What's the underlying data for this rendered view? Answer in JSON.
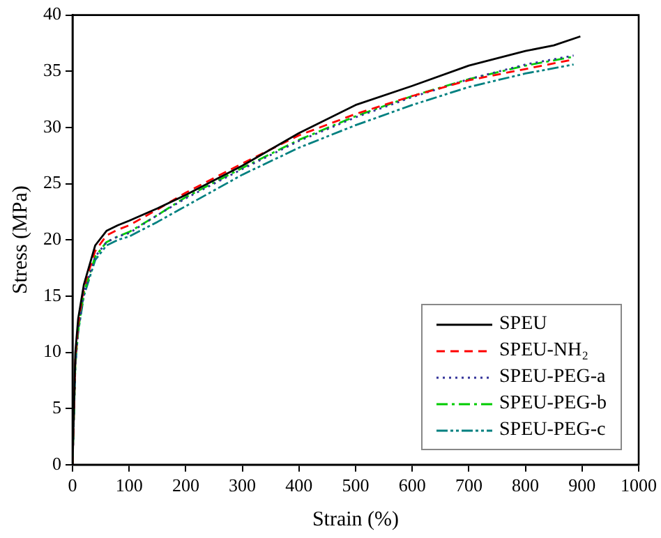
{
  "chart_data": {
    "type": "line",
    "xlabel": "Strain (%)",
    "ylabel": "Stress (MPa)",
    "xlim": [
      0,
      1000
    ],
    "xticks": [
      0,
      100,
      200,
      300,
      400,
      500,
      600,
      700,
      800,
      900,
      1000
    ],
    "ylim": [
      0,
      40
    ],
    "yticks": [
      0,
      5,
      10,
      15,
      20,
      25,
      30,
      35,
      40
    ],
    "grid": false,
    "legend": "bottom right",
    "marker": "none",
    "series": [
      {
        "name": "SPEU",
        "color": "#000000",
        "line_style": "solid",
        "x": [
          0,
          5,
          10,
          20,
          40,
          60,
          80,
          100,
          150,
          200,
          300,
          400,
          500,
          600,
          700,
          800,
          850,
          897
        ],
        "values": [
          0,
          10,
          13,
          16,
          19.5,
          20.8,
          21.3,
          21.7,
          22.8,
          24,
          26.6,
          29.5,
          32,
          33.7,
          35.5,
          36.8,
          37.3,
          38.1
        ]
      },
      {
        "name": "SPEU-NH₂",
        "color": "#ff0000",
        "line_style": "dashed",
        "x": [
          0,
          5,
          10,
          20,
          40,
          60,
          80,
          100,
          150,
          200,
          300,
          400,
          500,
          600,
          700,
          800,
          880
        ],
        "values": [
          0,
          9.5,
          12.5,
          15.8,
          19,
          20.4,
          20.9,
          21.3,
          22.7,
          24.2,
          26.8,
          29.3,
          31.2,
          32.8,
          34.2,
          35.2,
          36
        ]
      },
      {
        "name": "SPEU-PEG-a",
        "color": "#333399",
        "line_style": "dotted",
        "x": [
          0,
          5,
          10,
          20,
          40,
          60,
          80,
          100,
          150,
          200,
          300,
          400,
          500,
          600,
          700,
          800,
          885
        ],
        "values": [
          0,
          9,
          12,
          15.3,
          18.5,
          19.8,
          20.3,
          20.6,
          22.2,
          23.7,
          26.3,
          28.8,
          30.9,
          32.7,
          34.3,
          35.6,
          36.4
        ]
      },
      {
        "name": "SPEU-PEG-b",
        "color": "#00cc00",
        "line_style": "dashdot",
        "x": [
          0,
          5,
          10,
          20,
          40,
          60,
          80,
          100,
          150,
          200,
          300,
          400,
          500,
          600,
          700,
          800,
          885
        ],
        "values": [
          0,
          9,
          12,
          15.3,
          18.5,
          19.8,
          20.3,
          20.7,
          22.2,
          23.8,
          26.4,
          28.9,
          31,
          32.8,
          34.3,
          35.5,
          36.3
        ]
      },
      {
        "name": "SPEU-PEG-c",
        "color": "#008080",
        "line_style": "dashdotdot",
        "x": [
          0,
          5,
          10,
          20,
          40,
          60,
          80,
          100,
          150,
          200,
          300,
          400,
          500,
          600,
          700,
          800,
          885
        ],
        "values": [
          0,
          8.8,
          11.8,
          15,
          18.2,
          19.5,
          20,
          20.3,
          21.6,
          23,
          25.8,
          28.2,
          30.2,
          32,
          33.6,
          34.8,
          35.6
        ]
      }
    ]
  }
}
